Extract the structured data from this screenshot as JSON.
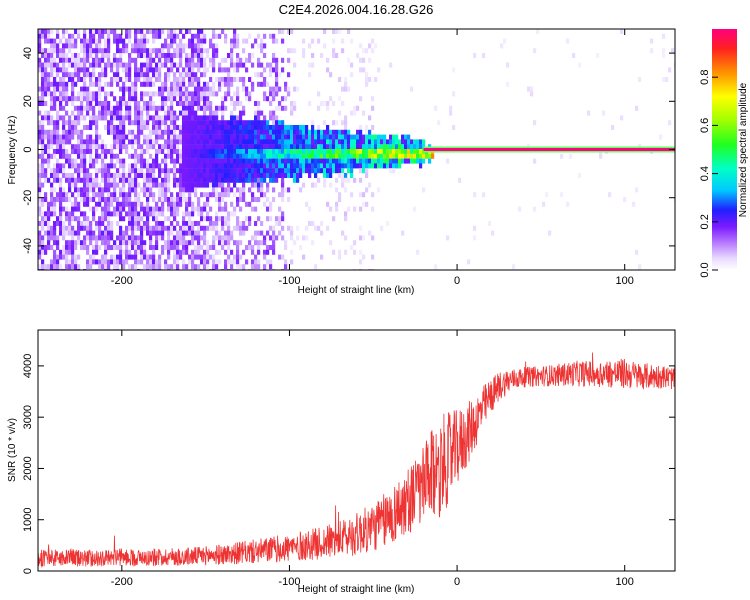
{
  "figure": {
    "title": "C2E4.2026.004.16.28.G26"
  },
  "chart_data": [
    {
      "type": "heatmap",
      "xlabel": "Height of straight line (km)",
      "ylabel": "Frequency (Hz)",
      "xlim": [
        -250,
        130
      ],
      "ylim": [
        -50,
        50
      ],
      "xticks": [
        -200,
        -100,
        0,
        100
      ],
      "yticks": [
        -40,
        -20,
        0,
        20,
        40
      ],
      "colorbar": {
        "label": "Normalized spectral amplitude",
        "range": [
          0,
          1
        ],
        "ticks": [
          0.0,
          0.2,
          0.4,
          0.6,
          0.8
        ]
      },
      "tone_band": {
        "x_start": -20,
        "x_end": 130,
        "frequency": 0,
        "amplitude": 1.0
      }
    },
    {
      "type": "line",
      "xlabel": "Height of straight line (km)",
      "ylabel": "SNR (10 * v/v)",
      "xlim": [
        -250,
        130
      ],
      "ylim": [
        0,
        4700
      ],
      "xticks": [
        -200,
        -100,
        0,
        100
      ],
      "yticks": [
        0,
        1000,
        2000,
        3000,
        4000
      ],
      "series": [
        {
          "name": "SNR",
          "color": "#ee3333",
          "x": [
            -250,
            -240,
            -230,
            -220,
            -210,
            -200,
            -190,
            -180,
            -170,
            -160,
            -150,
            -140,
            -130,
            -120,
            -110,
            -100,
            -90,
            -80,
            -70,
            -60,
            -50,
            -45,
            -40,
            -35,
            -30,
            -25,
            -20,
            -15,
            -10,
            -5,
            0,
            5,
            10,
            15,
            20,
            25,
            30,
            35,
            40,
            50,
            60,
            70,
            80,
            90,
            100,
            110,
            120,
            130
          ],
          "y": [
            250,
            250,
            260,
            250,
            260,
            270,
            260,
            270,
            280,
            280,
            300,
            320,
            350,
            380,
            420,
            450,
            500,
            550,
            620,
            720,
            850,
            950,
            1050,
            1200,
            1350,
            1500,
            1650,
            1850,
            2050,
            2200,
            2400,
            2600,
            2850,
            3150,
            3400,
            3600,
            3700,
            3750,
            3780,
            3800,
            3820,
            3850,
            3850,
            3850,
            3850,
            3800,
            3800,
            3750
          ],
          "noise": [
            170,
            170,
            170,
            170,
            170,
            170,
            170,
            170,
            180,
            180,
            190,
            200,
            220,
            240,
            260,
            280,
            300,
            320,
            360,
            420,
            480,
            520,
            560,
            600,
            650,
            700,
            800,
            900,
            1000,
            900,
            750,
            650,
            550,
            450,
            350,
            300,
            250,
            200,
            200,
            200,
            220,
            250,
            260,
            280,
            300,
            260,
            240,
            220
          ]
        }
      ]
    }
  ]
}
